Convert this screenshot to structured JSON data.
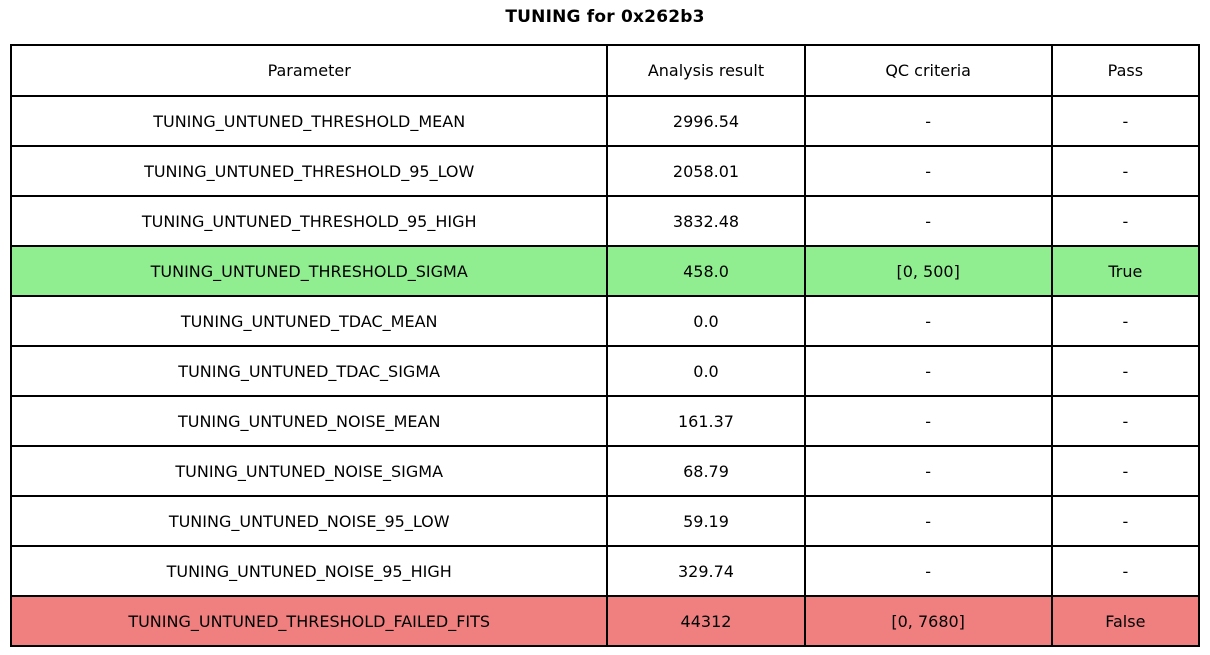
{
  "title": "TUNING for 0x262b3",
  "colors": {
    "pass_row": "#90ee90",
    "fail_row": "#f08080",
    "border": "#000000",
    "background": "#ffffff"
  },
  "chart_data": {
    "type": "table",
    "title": "TUNING for 0x262b3",
    "columns": [
      "Parameter",
      "Analysis result",
      "QC criteria",
      "Pass"
    ],
    "rows": [
      {
        "parameter": "TUNING_UNTUNED_THRESHOLD_MEAN",
        "result": "2996.54",
        "qc": "-",
        "pass": "-",
        "status": "none"
      },
      {
        "parameter": "TUNING_UNTUNED_THRESHOLD_95_LOW",
        "result": "2058.01",
        "qc": "-",
        "pass": "-",
        "status": "none"
      },
      {
        "parameter": "TUNING_UNTUNED_THRESHOLD_95_HIGH",
        "result": "3832.48",
        "qc": "-",
        "pass": "-",
        "status": "none"
      },
      {
        "parameter": "TUNING_UNTUNED_THRESHOLD_SIGMA",
        "result": "458.0",
        "qc": "[0, 500]",
        "pass": "True",
        "status": "pass"
      },
      {
        "parameter": "TUNING_UNTUNED_TDAC_MEAN",
        "result": "0.0",
        "qc": "-",
        "pass": "-",
        "status": "none"
      },
      {
        "parameter": "TUNING_UNTUNED_TDAC_SIGMA",
        "result": "0.0",
        "qc": "-",
        "pass": "-",
        "status": "none"
      },
      {
        "parameter": "TUNING_UNTUNED_NOISE_MEAN",
        "result": "161.37",
        "qc": "-",
        "pass": "-",
        "status": "none"
      },
      {
        "parameter": "TUNING_UNTUNED_NOISE_SIGMA",
        "result": "68.79",
        "qc": "-",
        "pass": "-",
        "status": "none"
      },
      {
        "parameter": "TUNING_UNTUNED_NOISE_95_LOW",
        "result": "59.19",
        "qc": "-",
        "pass": "-",
        "status": "none"
      },
      {
        "parameter": "TUNING_UNTUNED_NOISE_95_HIGH",
        "result": "329.74",
        "qc": "-",
        "pass": "-",
        "status": "none"
      },
      {
        "parameter": "TUNING_UNTUNED_THRESHOLD_FAILED_FITS",
        "result": "44312",
        "qc": "[0, 7680]",
        "pass": "False",
        "status": "fail"
      }
    ]
  }
}
